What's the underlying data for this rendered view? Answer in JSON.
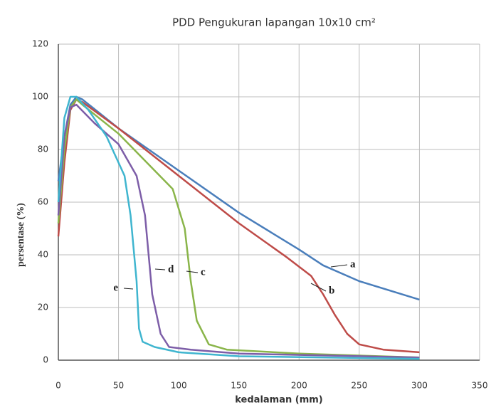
{
  "chart_data": {
    "type": "line",
    "title": "PDD Pengukuran lapangan 10x10 cm²",
    "xlabel": "kedalaman (mm)",
    "ylabel": "persentase (%)",
    "xlim": [
      0,
      350
    ],
    "xticks": [
      0,
      50,
      100,
      150,
      200,
      250,
      300,
      350
    ],
    "ylim": [
      0,
      120
    ],
    "yticks": [
      0,
      20,
      40,
      60,
      80,
      100,
      120
    ],
    "grid": true,
    "series": [
      {
        "name": "a",
        "color": "#4a7ebb",
        "x": [
          0,
          5,
          10,
          15,
          20,
          50,
          100,
          150,
          200,
          220,
          250,
          300
        ],
        "values": [
          68,
          85,
          97,
          100,
          99,
          88,
          72,
          56,
          42,
          36,
          30,
          23
        ]
      },
      {
        "name": "b",
        "color": "#be4b48",
        "x": [
          0,
          5,
          10,
          15,
          20,
          50,
          100,
          150,
          190,
          210,
          220,
          230,
          240,
          250,
          270,
          300
        ],
        "values": [
          47,
          75,
          95,
          99,
          98,
          88,
          70,
          52,
          39,
          32,
          25,
          17,
          10,
          6,
          4,
          3
        ]
      },
      {
        "name": "c",
        "color": "#8ab54a",
        "x": [
          0,
          5,
          10,
          15,
          20,
          50,
          80,
          95,
          105,
          110,
          115,
          125,
          140,
          200,
          300
        ],
        "values": [
          52,
          80,
          96,
          99,
          97,
          86,
          72,
          65,
          50,
          30,
          15,
          6,
          4,
          2.5,
          1
        ]
      },
      {
        "name": "d",
        "color": "#7d5ea8",
        "x": [
          0,
          5,
          10,
          15,
          30,
          50,
          65,
          72,
          78,
          85,
          92,
          110,
          150,
          300
        ],
        "values": [
          55,
          85,
          96,
          97,
          90,
          82,
          70,
          55,
          25,
          10,
          5,
          4,
          2.5,
          1
        ]
      },
      {
        "name": "e",
        "color": "#3fb5cf",
        "x": [
          0,
          5,
          10,
          15,
          25,
          40,
          55,
          60,
          65,
          67,
          70,
          80,
          100,
          150,
          300
        ],
        "values": [
          60,
          92,
          100,
          100,
          95,
          85,
          70,
          55,
          30,
          12,
          7,
          5,
          3,
          1.5,
          0.5
        ]
      }
    ]
  }
}
